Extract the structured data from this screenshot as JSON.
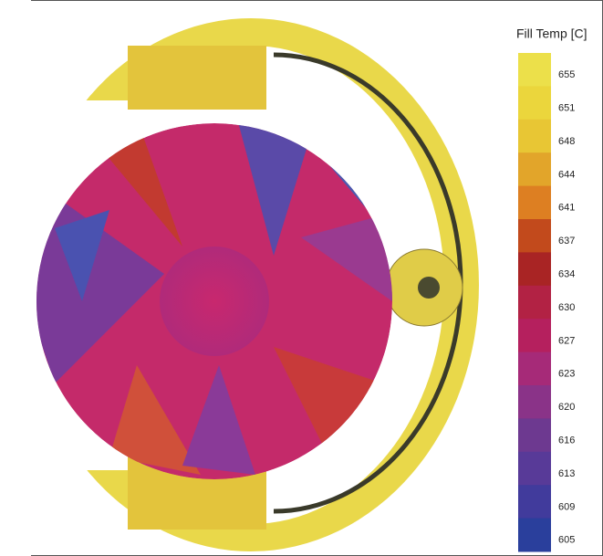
{
  "legend": {
    "title": "Fill Temp [C]",
    "labels": [
      655,
      651,
      648,
      644,
      641,
      637,
      634,
      630,
      627,
      623,
      620,
      616,
      613,
      609,
      605
    ],
    "colors": [
      "#ece04a",
      "#ebd63c",
      "#e8c634",
      "#e2a52a",
      "#dd7f22",
      "#c24a1c",
      "#a92424",
      "#b22244",
      "#b5205e",
      "#a62a78",
      "#8a3388",
      "#6d3990",
      "#583a98",
      "#413b9c",
      "#2a3f9c"
    ]
  }
}
